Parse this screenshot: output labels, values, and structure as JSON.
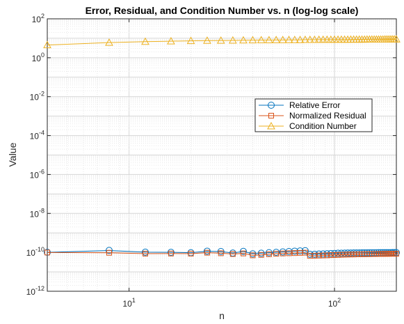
{
  "chart_data": {
    "type": "line",
    "title": "Error, Residual, and Condition Number vs. n (log-log scale)",
    "xlabel": "n",
    "ylabel": "Value",
    "xscale": "log",
    "yscale": "log",
    "xlim": [
      4,
      200
    ],
    "ylim": [
      1e-12,
      100
    ],
    "grid": true,
    "legend_placement": "right",
    "x_ticks": [
      {
        "value": 10,
        "base": "10",
        "exp": "1"
      },
      {
        "value": 100,
        "base": "10",
        "exp": "2"
      }
    ],
    "y_ticks": [
      {
        "value": 1e-12,
        "base": "10",
        "exp": "-12"
      },
      {
        "value": 1e-10,
        "base": "10",
        "exp": "-10"
      },
      {
        "value": 1e-08,
        "base": "10",
        "exp": "-8"
      },
      {
        "value": 1e-06,
        "base": "10",
        "exp": "-6"
      },
      {
        "value": 0.0001,
        "base": "10",
        "exp": "-4"
      },
      {
        "value": 0.01,
        "base": "10",
        "exp": "-2"
      },
      {
        "value": 1,
        "base": "10",
        "exp": "0"
      },
      {
        "value": 100,
        "base": "10",
        "exp": "2"
      }
    ],
    "x": [
      4,
      8,
      12,
      16,
      20,
      24,
      28,
      32,
      36,
      40,
      44,
      48,
      52,
      56,
      60,
      64,
      68,
      72,
      76,
      80,
      84,
      88,
      92,
      96,
      100,
      104,
      108,
      112,
      116,
      120,
      124,
      128,
      132,
      136,
      140,
      144,
      148,
      152,
      156,
      160,
      164,
      168,
      172,
      176,
      180,
      184,
      188,
      192,
      196,
      200
    ],
    "series": [
      {
        "name": "Relative Error",
        "color": "#0072BD",
        "marker": "circle",
        "values": [
          1e-10,
          1.25e-10,
          1.02e-10,
          1e-10,
          9.6e-11,
          1.15e-10,
          1.1e-10,
          9.2e-11,
          1.12e-10,
          8.4e-11,
          9e-11,
          9.6e-11,
          1e-10,
          1.05e-10,
          1.1e-10,
          1.15e-10,
          1.18e-10,
          1.22e-10,
          8e-11,
          8e-11,
          8.2e-11,
          8.3e-11,
          8.5e-11,
          8.7e-11,
          8.8e-11,
          9e-11,
          9e-11,
          9.1e-11,
          9.2e-11,
          9.2e-11,
          9.3e-11,
          9.3e-11,
          9.3e-11,
          9.4e-11,
          9.4e-11,
          9.4e-11,
          9.5e-11,
          9.5e-11,
          9.5e-11,
          9.5e-11,
          9.6e-11,
          9.6e-11,
          9.6e-11,
          9.6e-11,
          9.6e-11,
          9.6e-11,
          9.6e-11,
          9.7e-11,
          9.7e-11,
          9.7e-11
        ]
      },
      {
        "name": "Normalized Residual",
        "color": "#D95319",
        "marker": "square",
        "values": [
          9.8e-11,
          9.5e-11,
          8.6e-11,
          8.7e-11,
          8.6e-11,
          9.6e-11,
          9e-11,
          8.2e-11,
          8.8e-11,
          7e-11,
          7.4e-11,
          8e-11,
          8.5e-11,
          8.8e-11,
          9e-11,
          9.2e-11,
          9.4e-11,
          9.6e-11,
          6.6e-11,
          6.7e-11,
          6.8e-11,
          6.9e-11,
          7e-11,
          7.2e-11,
          7.3e-11,
          7.4e-11,
          7.5e-11,
          7.6e-11,
          7.7e-11,
          7.8e-11,
          7.8e-11,
          7.9e-11,
          7.9e-11,
          8e-11,
          8e-11,
          8.1e-11,
          8.1e-11,
          8.2e-11,
          8.2e-11,
          8.2e-11,
          8.3e-11,
          8.3e-11,
          8.3e-11,
          8.4e-11,
          8.4e-11,
          8.4e-11,
          8.5e-11,
          8.5e-11,
          8.5e-11,
          8.5e-11
        ]
      },
      {
        "name": "Condition Number",
        "color": "#EDB120",
        "marker": "triangle",
        "values": [
          4.5,
          6.0,
          6.7,
          7.1,
          7.4,
          7.6,
          7.7,
          7.8,
          7.9,
          8.0,
          8.1,
          8.1,
          8.2,
          8.2,
          8.3,
          8.3,
          8.3,
          8.4,
          8.4,
          8.4,
          8.5,
          8.5,
          8.5,
          8.5,
          8.6,
          8.6,
          8.6,
          8.6,
          8.6,
          8.7,
          8.7,
          8.7,
          8.7,
          8.7,
          8.7,
          8.8,
          8.8,
          8.8,
          8.8,
          8.8,
          8.8,
          8.8,
          8.8,
          8.9,
          8.9,
          8.9,
          8.9,
          8.9,
          8.9,
          8.9
        ]
      }
    ]
  }
}
